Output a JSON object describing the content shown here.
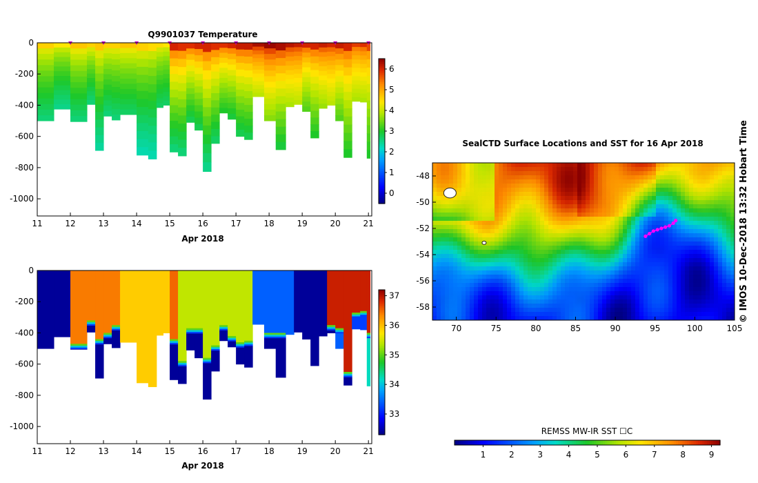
{
  "chart_data": [
    {
      "type": "heatmap",
      "title": "Q9901037  Temperature",
      "xlabel": "Apr 2018",
      "ylabel": "",
      "x_ticks": [
        "11",
        "12",
        "13",
        "14",
        "15",
        "16",
        "17",
        "18",
        "19",
        "20",
        "21"
      ],
      "xlim": [
        11,
        21.1
      ],
      "y_ticks": [
        "0",
        "-200",
        "-400",
        "-600",
        "-800",
        "-1000"
      ],
      "ylim": [
        -1110,
        0
      ],
      "colorbar": {
        "ticks": [
          "0",
          "1",
          "2",
          "3",
          "4",
          "5",
          "6"
        ],
        "range": [
          -0.5,
          6.5
        ]
      },
      "profiles": [
        {
          "t": 11.0,
          "depth": 500,
          "surf": 4.6,
          "deep": 2.6
        },
        {
          "t": 11.5,
          "depth": 425,
          "surf": 4.4,
          "deep": 2.5
        },
        {
          "t": 12.0,
          "depth": 505,
          "surf": 4.7,
          "deep": 2.6
        },
        {
          "t": 12.5,
          "depth": 395,
          "surf": 4.6,
          "deep": 2.6
        },
        {
          "t": 12.75,
          "depth": 690,
          "surf": 4.7,
          "deep": 2.4
        },
        {
          "t": 13.0,
          "depth": 470,
          "surf": 4.6,
          "deep": 2.6
        },
        {
          "t": 13.25,
          "depth": 495,
          "surf": 4.6,
          "deep": 2.6
        },
        {
          "t": 13.5,
          "depth": 460,
          "surf": 4.7,
          "deep": 2.7
        },
        {
          "t": 14.0,
          "depth": 720,
          "surf": 4.6,
          "deep": 2.3
        },
        {
          "t": 14.35,
          "depth": 745,
          "surf": 4.5,
          "deep": 2.3
        },
        {
          "t": 14.6,
          "depth": 415,
          "surf": 4.5,
          "deep": 2.7
        },
        {
          "t": 14.8,
          "depth": 400,
          "surf": 4.4,
          "deep": 2.7
        },
        {
          "t": 15.0,
          "depth": 700,
          "surf": 6.0,
          "deep": 2.6
        },
        {
          "t": 15.25,
          "depth": 725,
          "surf": 5.9,
          "deep": 2.6
        },
        {
          "t": 15.5,
          "depth": 510,
          "surf": 5.9,
          "deep": 2.8
        },
        {
          "t": 15.75,
          "depth": 560,
          "surf": 6.0,
          "deep": 2.8
        },
        {
          "t": 16.0,
          "depth": 825,
          "surf": 6.0,
          "deep": 2.5
        },
        {
          "t": 16.25,
          "depth": 645,
          "surf": 5.9,
          "deep": 2.7
        },
        {
          "t": 16.5,
          "depth": 450,
          "surf": 5.9,
          "deep": 3.0
        },
        {
          "t": 16.75,
          "depth": 490,
          "surf": 6.0,
          "deep": 2.9
        },
        {
          "t": 17.0,
          "depth": 600,
          "surf": 6.1,
          "deep": 2.8
        },
        {
          "t": 17.25,
          "depth": 620,
          "surf": 6.1,
          "deep": 2.8
        },
        {
          "t": 17.5,
          "depth": 345,
          "surf": 6.3,
          "deep": 3.9
        },
        {
          "t": 17.85,
          "depth": 500,
          "surf": 6.4,
          "deep": 3.6
        },
        {
          "t": 18.2,
          "depth": 685,
          "surf": 6.3,
          "deep": 2.9
        },
        {
          "t": 18.5,
          "depth": 410,
          "surf": 6.2,
          "deep": 3.8
        },
        {
          "t": 18.75,
          "depth": 395,
          "surf": 6.1,
          "deep": 3.9
        },
        {
          "t": 19.0,
          "depth": 440,
          "surf": 6.0,
          "deep": 3.3
        },
        {
          "t": 19.25,
          "depth": 610,
          "surf": 6.0,
          "deep": 3.0
        },
        {
          "t": 19.5,
          "depth": 420,
          "surf": 6.1,
          "deep": 3.7
        },
        {
          "t": 19.75,
          "depth": 400,
          "surf": 6.0,
          "deep": 3.9
        },
        {
          "t": 20.0,
          "depth": 500,
          "surf": 6.1,
          "deep": 3.3
        },
        {
          "t": 20.25,
          "depth": 735,
          "surf": 6.0,
          "deep": 3.0
        },
        {
          "t": 20.5,
          "depth": 375,
          "surf": 5.8,
          "deep": 3.8
        },
        {
          "t": 20.75,
          "depth": 380,
          "surf": 5.9,
          "deep": 3.8
        },
        {
          "t": 20.95,
          "depth": 740,
          "surf": 5.7,
          "deep": 3.0
        }
      ],
      "surface_markers": [
        12.0,
        13.0,
        14.0,
        15.0,
        16.0,
        17.0,
        18.0,
        19.0,
        20.0,
        21.0
      ]
    },
    {
      "type": "heatmap",
      "title": "",
      "xlabel": "Apr 2018",
      "ylabel": "",
      "x_ticks": [
        "11",
        "12",
        "13",
        "14",
        "15",
        "16",
        "17",
        "18",
        "19",
        "20",
        "21"
      ],
      "xlim": [
        11,
        21.1
      ],
      "y_ticks": [
        "0",
        "-200",
        "-400",
        "-600",
        "-800",
        "-1000"
      ],
      "ylim": [
        -1110,
        0
      ],
      "colorbar": {
        "ticks": [
          "33",
          "34",
          "35",
          "36",
          "37"
        ],
        "range": [
          32.3,
          37.2
        ]
      },
      "profiles": [
        {
          "t": 11.0,
          "depth": 500,
          "top": 32.4,
          "bottom": 32.4,
          "transition": 9999
        },
        {
          "t": 11.5,
          "depth": 425,
          "top": 32.4,
          "bottom": 32.4,
          "transition": 9999
        },
        {
          "t": 12.0,
          "depth": 505,
          "top": 36.4,
          "bottom": 32.4,
          "transition": 470
        },
        {
          "t": 12.5,
          "depth": 395,
          "top": 36.4,
          "bottom": 32.4,
          "transition": 320
        },
        {
          "t": 12.75,
          "depth": 690,
          "top": 36.4,
          "bottom": 32.4,
          "transition": 440
        },
        {
          "t": 13.0,
          "depth": 470,
          "top": 36.4,
          "bottom": 32.4,
          "transition": 400
        },
        {
          "t": 13.25,
          "depth": 495,
          "top": 36.4,
          "bottom": 32.4,
          "transition": 350
        },
        {
          "t": 13.5,
          "depth": 460,
          "top": 35.9,
          "bottom": 35.9,
          "transition": 9999
        },
        {
          "t": 14.0,
          "depth": 720,
          "top": 35.9,
          "bottom": 35.9,
          "transition": 9999
        },
        {
          "t": 14.35,
          "depth": 745,
          "top": 35.9,
          "bottom": 35.9,
          "transition": 9999
        },
        {
          "t": 14.6,
          "depth": 415,
          "top": 35.9,
          "bottom": 35.9,
          "transition": 9999
        },
        {
          "t": 14.8,
          "depth": 400,
          "top": 35.9,
          "bottom": 35.9,
          "transition": 9999
        },
        {
          "t": 15.0,
          "depth": 700,
          "top": 36.5,
          "bottom": 32.4,
          "transition": 440
        },
        {
          "t": 15.25,
          "depth": 725,
          "top": 35.4,
          "bottom": 32.4,
          "transition": 580
        },
        {
          "t": 15.5,
          "depth": 510,
          "top": 35.4,
          "bottom": 32.4,
          "transition": 370
        },
        {
          "t": 15.75,
          "depth": 560,
          "top": 35.4,
          "bottom": 32.4,
          "transition": 370
        },
        {
          "t": 16.0,
          "depth": 825,
          "top": 35.4,
          "bottom": 32.4,
          "transition": 560
        },
        {
          "t": 16.25,
          "depth": 645,
          "top": 35.4,
          "bottom": 32.4,
          "transition": 480
        },
        {
          "t": 16.5,
          "depth": 450,
          "top": 35.4,
          "bottom": 32.4,
          "transition": 350
        },
        {
          "t": 16.75,
          "depth": 490,
          "top": 35.4,
          "bottom": 32.4,
          "transition": 420
        },
        {
          "t": 17.0,
          "depth": 600,
          "top": 35.4,
          "bottom": 32.4,
          "transition": 460
        },
        {
          "t": 17.25,
          "depth": 620,
          "top": 35.4,
          "bottom": 32.4,
          "transition": 450
        },
        {
          "t": 17.5,
          "depth": 345,
          "top": 33.4,
          "bottom": 33.4,
          "transition": 9999
        },
        {
          "t": 17.85,
          "depth": 500,
          "top": 33.4,
          "bottom": 32.4,
          "transition": 400
        },
        {
          "t": 18.2,
          "depth": 685,
          "top": 33.4,
          "bottom": 32.4,
          "transition": 400
        },
        {
          "t": 18.5,
          "depth": 410,
          "top": 33.4,
          "bottom": 33.4,
          "transition": 9999
        },
        {
          "t": 18.75,
          "depth": 395,
          "top": 32.4,
          "bottom": 32.4,
          "transition": 9999
        },
        {
          "t": 19.0,
          "depth": 440,
          "top": 32.4,
          "bottom": 32.4,
          "transition": 9999
        },
        {
          "t": 19.25,
          "depth": 610,
          "top": 32.4,
          "bottom": 32.4,
          "transition": 9999
        },
        {
          "t": 19.5,
          "depth": 420,
          "top": 32.4,
          "bottom": 32.4,
          "transition": 9999
        },
        {
          "t": 19.75,
          "depth": 400,
          "top": 36.9,
          "bottom": 32.4,
          "transition": 350
        },
        {
          "t": 20.0,
          "depth": 500,
          "top": 36.9,
          "bottom": 33.4,
          "transition": 370
        },
        {
          "t": 20.25,
          "depth": 735,
          "top": 36.9,
          "bottom": 32.4,
          "transition": 650
        },
        {
          "t": 20.5,
          "depth": 375,
          "top": 36.9,
          "bottom": 33.2,
          "transition": 270
        },
        {
          "t": 20.75,
          "depth": 380,
          "top": 36.9,
          "bottom": 33.2,
          "transition": 260
        },
        {
          "t": 20.95,
          "depth": 740,
          "top": 36.9,
          "bottom": 34.2,
          "transition": 400
        }
      ]
    },
    {
      "type": "heatmap",
      "title": "SealCTD Surface Locations and SST for 16 Apr 2018",
      "x_ticks": [
        "70",
        "75",
        "80",
        "85",
        "90",
        "95",
        "100",
        "105"
      ],
      "xlim": [
        67,
        105
      ],
      "y_ticks": [
        "-48",
        "-50",
        "-52",
        "-54",
        "-56",
        "-58"
      ],
      "ylim": [
        -59,
        -47.0
      ],
      "colorbar": {
        "label": "REMSS MW-IR SST ☐C",
        "ticks": [
          "1",
          "2",
          "3",
          "4",
          "5",
          "6",
          "7",
          "8",
          "9"
        ],
        "range": [
          0,
          9.3
        ]
      },
      "track": [
        {
          "lon": 93.8,
          "lat": -52.6
        },
        {
          "lon": 94.3,
          "lat": -52.4
        },
        {
          "lon": 94.8,
          "lat": -52.2
        },
        {
          "lon": 95.3,
          "lat": -52.1
        },
        {
          "lon": 95.8,
          "lat": -52.0
        },
        {
          "lon": 96.3,
          "lat": -51.9
        },
        {
          "lon": 96.8,
          "lat": -51.8
        },
        {
          "lon": 97.3,
          "lat": -51.6
        },
        {
          "lon": 97.6,
          "lat": -51.4
        }
      ],
      "land_labels": [
        {
          "lon": 69.2,
          "lat": -49.3
        },
        {
          "lon": 73.5,
          "lat": -53.1
        }
      ]
    }
  ],
  "side_label": "©  IMOS 10-Dec-2018 13:32 Hobart Time"
}
